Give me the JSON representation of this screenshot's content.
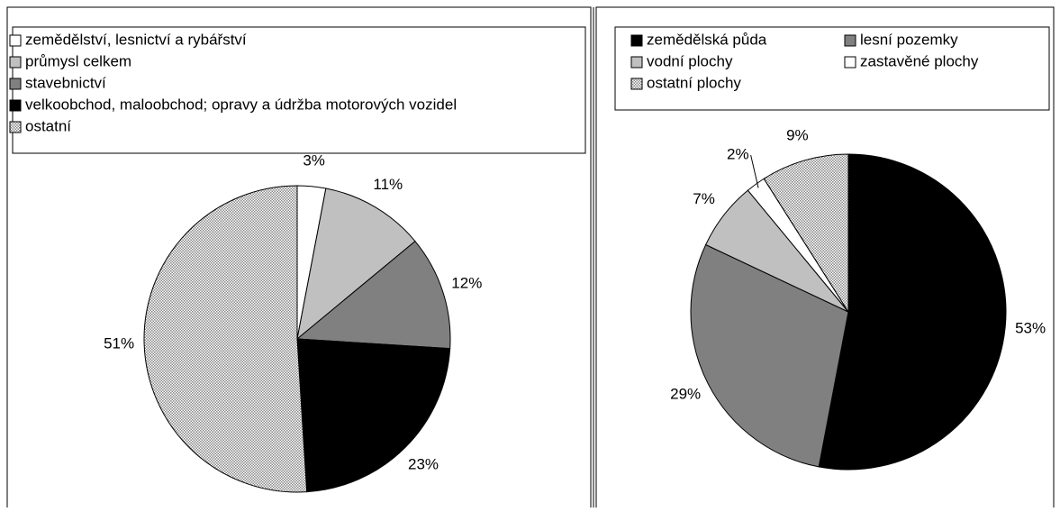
{
  "chart_data": [
    {
      "type": "pie",
      "categories": [
        "zemědělství, lesnictví a rybářství",
        "průmysl celkem",
        "stavebnictví",
        "velkoobchod, maloobchod; opravy a údržba motorových vozidel",
        "ostatní"
      ],
      "values": [
        3,
        11,
        12,
        23,
        51
      ],
      "value_labels": [
        "3%",
        "11%",
        "12%",
        "23%",
        "51%"
      ],
      "colors": [
        "#ffffff",
        "#c0c0c0",
        "#808080",
        "#000000",
        "#d9d9d9"
      ],
      "hatched": [
        false,
        false,
        false,
        false,
        true
      ],
      "legend_columns": 1
    },
    {
      "type": "pie",
      "categories": [
        "zemědělská půda",
        "lesní pozemky",
        "vodní plochy",
        "zastavěné plochy",
        "ostatní plochy"
      ],
      "values": [
        53,
        29,
        7,
        2,
        9
      ],
      "value_labels": [
        "53%",
        "29%",
        "7%",
        "2%",
        "9%"
      ],
      "colors": [
        "#000000",
        "#808080",
        "#c0c0c0",
        "#ffffff",
        "#d9d9d9"
      ],
      "hatched": [
        false,
        false,
        false,
        false,
        true
      ],
      "legend_columns": 2
    }
  ]
}
